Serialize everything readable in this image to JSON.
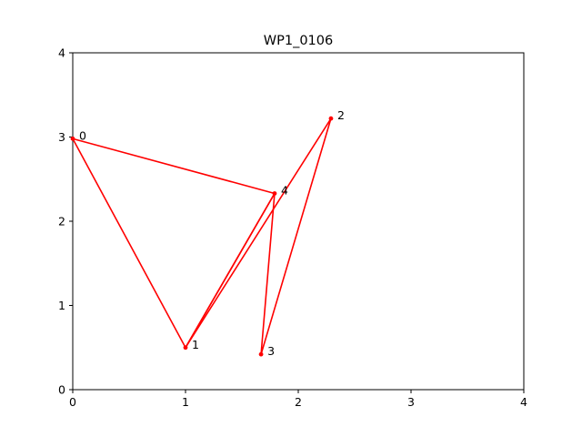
{
  "chart_data": {
    "type": "line",
    "title": "WP1_0106",
    "xlabel": "",
    "ylabel": "",
    "xlim": [
      0,
      4
    ],
    "ylim": [
      0,
      4
    ],
    "x_ticks": [
      "0",
      "1",
      "2",
      "3",
      "4"
    ],
    "y_ticks": [
      "0",
      "1",
      "2",
      "3",
      "4"
    ],
    "grid": false,
    "legend": "none",
    "line_color": "#ff0000",
    "points": [
      {
        "label": "0",
        "x": 0.0,
        "y": 2.98
      },
      {
        "label": "1",
        "x": 1.0,
        "y": 0.5
      },
      {
        "label": "2",
        "x": 2.29,
        "y": 3.22
      },
      {
        "label": "3",
        "x": 1.67,
        "y": 0.42
      },
      {
        "label": "4",
        "x": 1.79,
        "y": 2.33
      }
    ],
    "path_order": [
      0,
      1,
      4,
      3,
      2,
      1,
      4,
      0
    ]
  }
}
